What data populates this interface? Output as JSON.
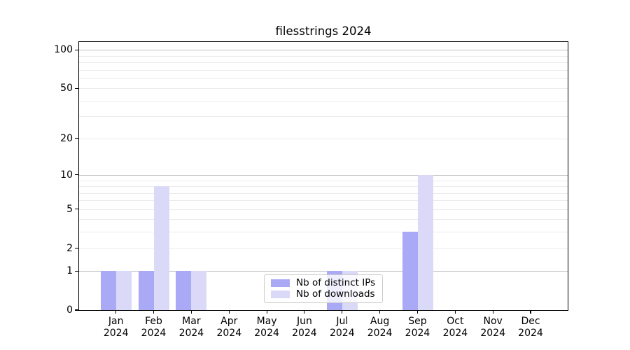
{
  "chart_data": {
    "type": "bar",
    "title": "filesstrings 2024",
    "categories": [
      "Jan 2024",
      "Feb 2024",
      "Mar 2024",
      "Apr 2024",
      "May 2024",
      "Jun 2024",
      "Jul 2024",
      "Aug 2024",
      "Sep 2024",
      "Oct 2024",
      "Nov 2024",
      "Dec 2024"
    ],
    "series": [
      {
        "name": "Nb of distinct IPs",
        "color": "#a9a9f5",
        "values": [
          1,
          1,
          1,
          0,
          0,
          0,
          1,
          0,
          3,
          0,
          0,
          0
        ]
      },
      {
        "name": "Nb of downloads",
        "color": "#dadaf8",
        "values": [
          1,
          8,
          1,
          0,
          0,
          0,
          1,
          0,
          10,
          0,
          0,
          0
        ]
      }
    ],
    "xlabel": "",
    "ylabel": "",
    "yscale": "log1p",
    "ylim": [
      0,
      115
    ],
    "yticks": [
      0,
      1,
      2,
      5,
      10,
      20,
      50,
      100
    ],
    "major_gridlines": [
      1,
      10,
      100
    ],
    "minor_gridlines": [
      2,
      3,
      4,
      5,
      6,
      7,
      8,
      9,
      20,
      30,
      40,
      50,
      60,
      70,
      80,
      90
    ],
    "grid": true,
    "legend_position": "lower center"
  }
}
